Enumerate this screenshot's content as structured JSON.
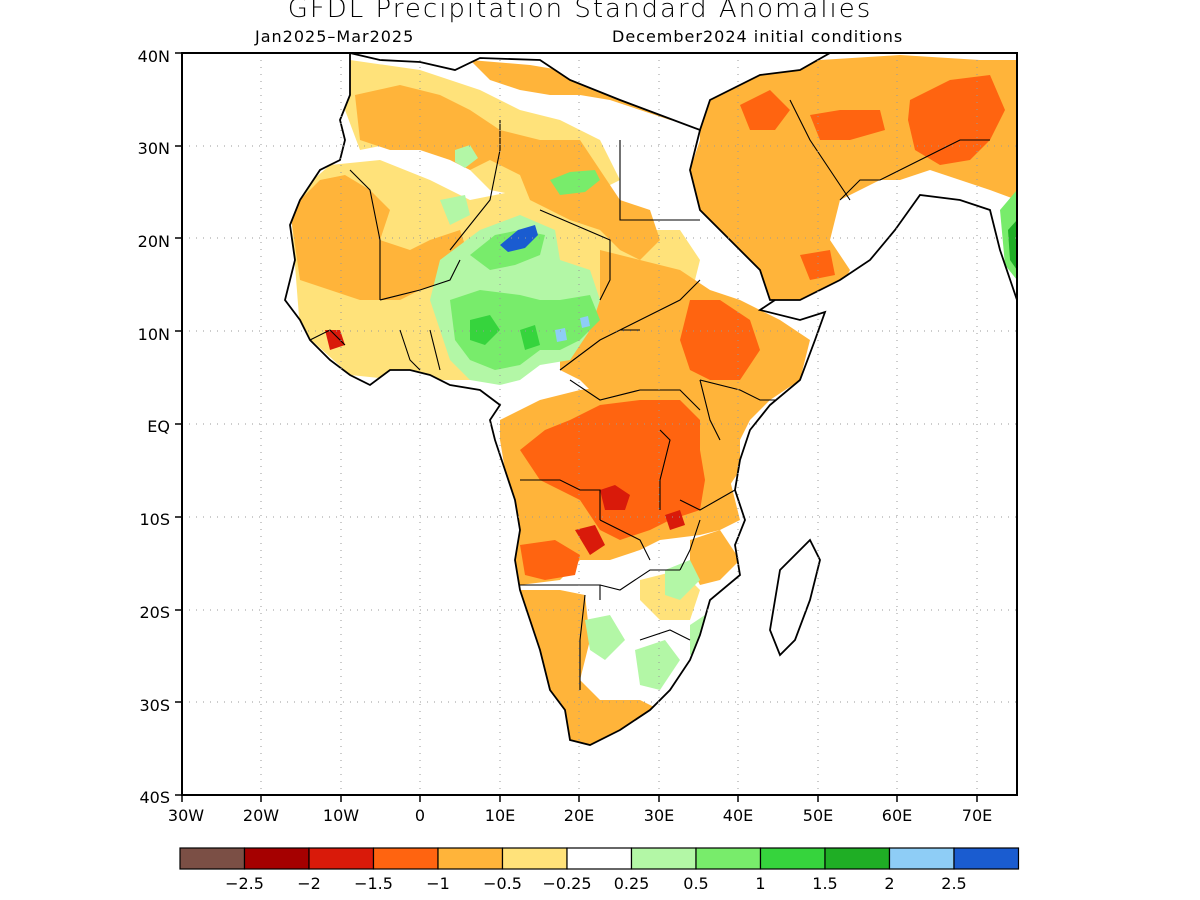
{
  "title": "GFDL Precipitation Standard Anomalies",
  "subtitle_left": "Jan2025–Mar2025",
  "subtitle_right": "December2024 initial conditions",
  "axes": {
    "lon_labels": [
      "30W",
      "20W",
      "10W",
      "0",
      "10E",
      "20E",
      "30E",
      "40E",
      "50E",
      "60E",
      "70E"
    ],
    "lat_labels": [
      "40N",
      "30N",
      "20N",
      "10N",
      "EQ",
      "10S",
      "20S",
      "30S",
      "40S"
    ],
    "lon_range": [
      -30,
      75
    ],
    "lat_range": [
      -40,
      40
    ],
    "grid": "dotted"
  },
  "colorbar": {
    "colors": [
      "#7b4f45",
      "#a50000",
      "#d91a0a",
      "#ff6410",
      "#ffb43a",
      "#ffe27a",
      "#ffffff",
      "#b3f7a6",
      "#78ec6b",
      "#36d43d",
      "#1fae25",
      "#8ecdf6",
      "#1a5cd0"
    ],
    "labels": [
      "−2.5",
      "−2",
      "−1.5",
      "−1",
      "−0.5",
      "−0.25",
      "0.25",
      "0.5",
      "1",
      "1.5",
      "2",
      "2.5"
    ]
  },
  "legend_colors": {
    "light_orange": "#ffe27a",
    "orange": "#ffb43a",
    "dark_orange": "#ff6410",
    "red": "#d91a0a",
    "light_green": "#b3f7a6",
    "green": "#78ec6b",
    "dark_green": "#36d43d",
    "blue": "#1a5cd0"
  }
}
